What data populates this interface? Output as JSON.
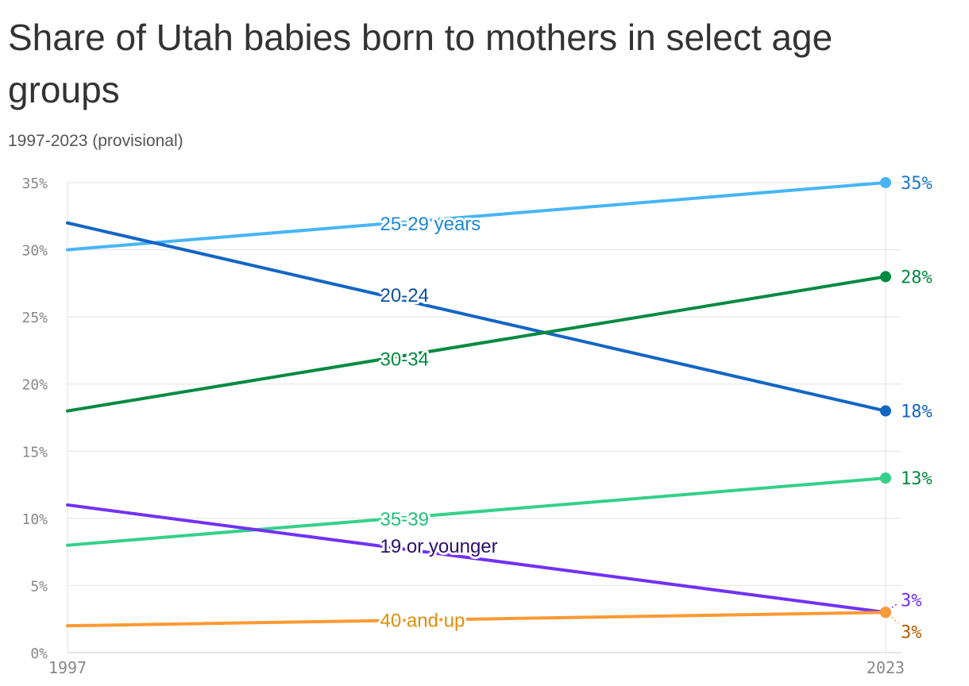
{
  "title": "Share of Utah babies born to mothers in select age groups",
  "subtitle": "1997-2023 (provisional)",
  "chart_data": {
    "type": "line",
    "x": [
      1997,
      2023
    ],
    "x_tick_labels": [
      "1997",
      "2023"
    ],
    "ylim": [
      0,
      35
    ],
    "y_ticks": [
      0,
      5,
      10,
      15,
      20,
      25,
      30,
      35
    ],
    "y_tick_labels": [
      "0%",
      "5%",
      "10%",
      "15%",
      "20%",
      "25%",
      "30%",
      "35%"
    ],
    "grid": true,
    "series": [
      {
        "name": "25-29 years",
        "values": [
          30,
          35
        ],
        "end_label": "35%",
        "color": "#47b5f5",
        "label_color": "#1c88d6",
        "end_label_color": "#1c78c5"
      },
      {
        "name": "20-24",
        "values": [
          32,
          18
        ],
        "end_label": "18%",
        "color": "#1366c4",
        "label_color": "#0d4f9e",
        "end_label_color": "#1366c4"
      },
      {
        "name": "30-34",
        "values": [
          18,
          28
        ],
        "end_label": "28%",
        "color": "#038a41",
        "label_color": "#038a41",
        "end_label_color": "#038a41"
      },
      {
        "name": "35-39",
        "values": [
          8,
          13
        ],
        "end_label": "13%",
        "color": "#35d08a",
        "label_color": "#1fbf79",
        "end_label_color": "#038a41"
      },
      {
        "name": "19 or younger",
        "values": [
          11,
          3
        ],
        "end_label": "3%",
        "color": "#7231f5",
        "label_color": "#2a0f6b",
        "end_label_color": "#7231f5"
      },
      {
        "name": "40 and up",
        "values": [
          2,
          3
        ],
        "end_label": "3%",
        "color": "#fb9a34",
        "label_color": "#e08e0b",
        "end_label_color": "#b65c00"
      }
    ]
  }
}
